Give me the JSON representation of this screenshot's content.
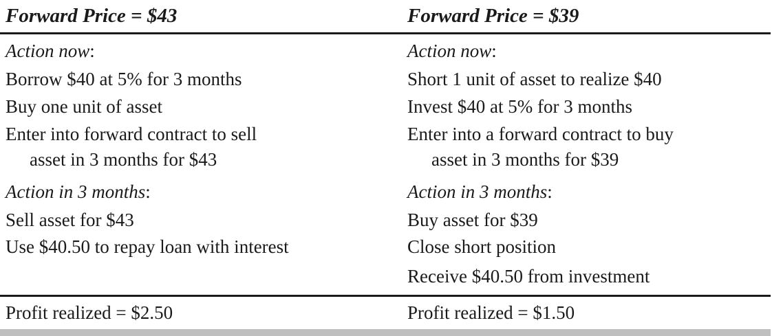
{
  "left": {
    "header": "Forward Price  =  $43",
    "action_now_label": "Action now",
    "action_now_colon": ":",
    "now_items": [
      "Borrow $40 at 5% for 3 months",
      "Buy one unit of asset",
      "Enter into forward contract to sell",
      "asset in 3 months for $43"
    ],
    "action_later_label": "Action in 3 months",
    "action_later_colon": ":",
    "later_items": [
      "Sell asset for $43",
      "Use $40.50 to repay loan with interest"
    ],
    "profit": "Profit realized  =  $2.50"
  },
  "right": {
    "header": "Forward Price  =  $39",
    "action_now_label": "Action now",
    "action_now_colon": ":",
    "now_items": [
      "Short 1 unit of asset to realize $40",
      "Invest $40 at 5% for 3 months",
      "Enter into a forward contract to buy",
      "asset in 3 months for $39"
    ],
    "action_later_label": "Action in 3 months",
    "action_later_colon": ":",
    "later_items": [
      "Buy asset for $39",
      "Close short position",
      "Receive $40.50 from investment"
    ],
    "profit": "Profit realized  =  $1.50"
  }
}
